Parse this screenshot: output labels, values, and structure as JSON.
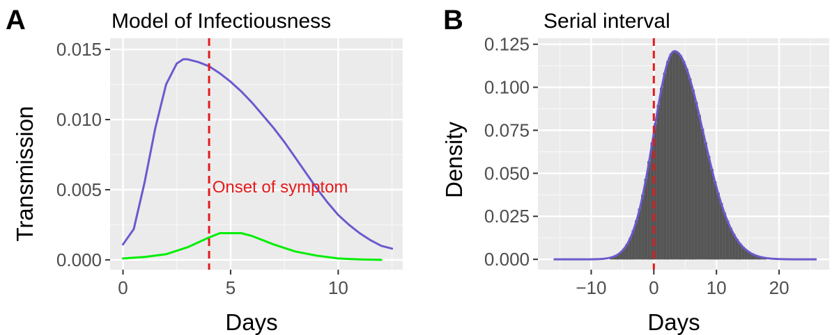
{
  "chart_data": [
    {
      "panel": "A",
      "type": "line",
      "title": "Model of Infectiousness",
      "xlabel": "Days",
      "ylabel": "Transmission",
      "xlim": [
        -0.6,
        13.0
      ],
      "ylim": [
        -0.0007,
        0.0158
      ],
      "xticks": [
        0,
        5,
        10
      ],
      "xtick_labels": [
        "0",
        "5",
        "10"
      ],
      "yticks": [
        0.0,
        0.005,
        0.01,
        0.015
      ],
      "ytick_labels": [
        "0.000",
        "0.005",
        "0.010",
        "0.015"
      ],
      "grid": true,
      "series": [
        {
          "color": "#6a5acd",
          "x": [
            0,
            0.5,
            1.0,
            1.5,
            2.0,
            2.5,
            2.8,
            3.0,
            3.5,
            4.0,
            4.5,
            5.0,
            5.5,
            6.0,
            6.5,
            7.0,
            7.5,
            8.0,
            8.5,
            9.0,
            9.5,
            10.0,
            10.5,
            11.0,
            11.5,
            12.0,
            12.5
          ],
          "y": [
            0.0011,
            0.0022,
            0.0055,
            0.0094,
            0.0125,
            0.014,
            0.0143,
            0.0143,
            0.0141,
            0.0138,
            0.0133,
            0.0127,
            0.012,
            0.0112,
            0.0103,
            0.0094,
            0.0084,
            0.0073,
            0.0062,
            0.0051,
            0.0041,
            0.0032,
            0.0025,
            0.0019,
            0.0014,
            0.001,
            0.0008
          ]
        },
        {
          "color": "#00ee00",
          "x": [
            0,
            1,
            2,
            3,
            4,
            4.5,
            5,
            5.5,
            6,
            7,
            8,
            9,
            10,
            11,
            12
          ],
          "y": [
            0.0001,
            0.0002,
            0.0004,
            0.0009,
            0.0016,
            0.0019,
            0.0019,
            0.0019,
            0.0017,
            0.0011,
            0.0006,
            0.0003,
            0.0001,
            3e-05,
            0.0
          ]
        }
      ],
      "vline": {
        "x": 4,
        "color": "#e41a1c"
      },
      "annotation": {
        "text": "Onset of symptom",
        "x": 4.15,
        "y": 0.0048,
        "color": "#e41a1c"
      }
    },
    {
      "panel": "B",
      "type": "bar",
      "title": "Serial interval",
      "xlabel": "Days",
      "ylabel": "Density",
      "xlim": [
        -18.5,
        28.0
      ],
      "ylim": [
        -0.006,
        0.1285
      ],
      "xticks": [
        -10,
        0,
        10,
        20
      ],
      "xtick_labels": [
        "−10",
        "0",
        "10",
        "20"
      ],
      "yticks": [
        0.0,
        0.025,
        0.05,
        0.075,
        0.1,
        0.125
      ],
      "ytick_labels": [
        "0.000",
        "0.025",
        "0.050",
        "0.075",
        "0.100",
        "0.125"
      ],
      "grid": true,
      "histogram": {
        "color": "#555555",
        "bin_width": 0.5,
        "peak": 3.3,
        "sd_left": 3.3,
        "sd_right": 4.6,
        "height": 0.121,
        "x_min": -16,
        "x_max": 26
      },
      "density_line": {
        "color": "#6a5acd"
      },
      "vline": {
        "x": 0,
        "color": "#e41a1c"
      }
    }
  ]
}
